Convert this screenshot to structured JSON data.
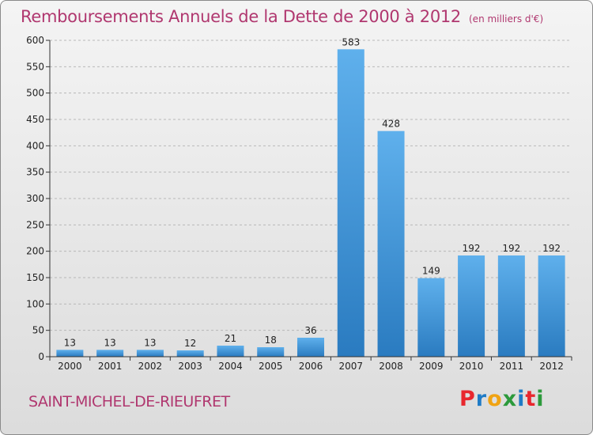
{
  "header": {
    "title": "Remboursements Annuels de la Dette de 2000 à 2012",
    "unit": "(en milliers d'€)"
  },
  "footer": {
    "commune": "SAINT-MICHEL-DE-RIEUFRET",
    "logo_letters": [
      "P",
      "r",
      "o",
      "x",
      "i",
      "t",
      "i"
    ],
    "logo_colors": [
      "#e8272e",
      "#1f7bc6",
      "#f0a313",
      "#2c9a3b",
      "#1f7bc6",
      "#e8272e",
      "#2c9a3b"
    ]
  },
  "chart_data": {
    "type": "bar",
    "title": "Remboursements Annuels de la Dette de 2000 à 2012",
    "xlabel": "",
    "ylabel": "",
    "categories": [
      "2000",
      "2001",
      "2002",
      "2003",
      "2004",
      "2005",
      "2006",
      "2007",
      "2008",
      "2009",
      "2010",
      "2011",
      "2012"
    ],
    "values": [
      13,
      13,
      13,
      12,
      21,
      18,
      36,
      583,
      428,
      149,
      192,
      192,
      192
    ],
    "ylim": [
      0,
      600
    ],
    "yticks": [
      0,
      50,
      100,
      150,
      200,
      250,
      300,
      350,
      400,
      450,
      500,
      550,
      600
    ],
    "grid": true,
    "colors": {
      "bar_top": "#5fb0ec",
      "bar_bottom": "#2a7bc0",
      "axis": "#333333",
      "grid": "#b8b8b8",
      "text": "#222222"
    }
  }
}
